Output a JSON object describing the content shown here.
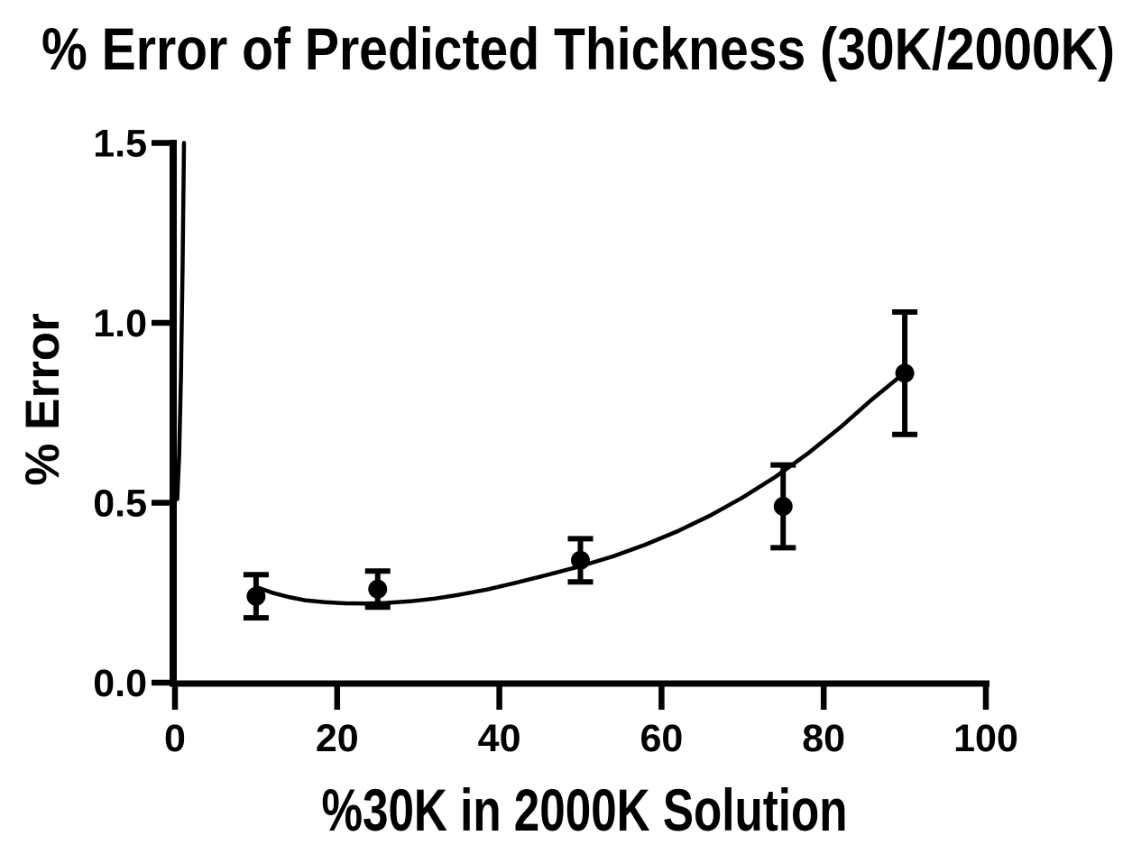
{
  "chart_data": {
    "type": "scatter",
    "title": "% Error of Predicted Thickness (30K/2000K)",
    "xlabel": "%30K in 2000K Solution",
    "ylabel": "% Error",
    "xlim": [
      0,
      100
    ],
    "ylim": [
      0,
      1.5
    ],
    "x_ticks": [
      0,
      20,
      40,
      60,
      80,
      100
    ],
    "x_tick_labels": [
      "0",
      "20",
      "40",
      "60",
      "80",
      "100"
    ],
    "y_ticks": [
      0,
      0.5,
      1.0,
      1.5
    ],
    "y_tick_labels": [
      "0.0",
      "0.5",
      "1.0",
      "1.5"
    ],
    "grid": false,
    "legend": null,
    "colors": {
      "marker": "#000000",
      "curve": "#000000",
      "axis": "#000000",
      "background": "#ffffff"
    },
    "points": [
      {
        "x": 10,
        "y": 0.24,
        "error": 0.06
      },
      {
        "x": 25,
        "y": 0.26,
        "error": 0.05
      },
      {
        "x": 50,
        "y": 0.34,
        "error": 0.06
      },
      {
        "x": 75,
        "y": 0.49,
        "error": 0.115
      },
      {
        "x": 90,
        "y": 0.86,
        "error": 0.17
      }
    ],
    "fit_curve": {
      "x": [
        10,
        12,
        14,
        16,
        18.5,
        21,
        23.5,
        26,
        29,
        32,
        35,
        38.5,
        42,
        46,
        50,
        54,
        58,
        62,
        66,
        70,
        74,
        78,
        82,
        86,
        90
      ],
      "y": [
        0.266,
        0.25,
        0.238,
        0.229,
        0.2235,
        0.2205,
        0.22,
        0.2215,
        0.226,
        0.2335,
        0.244,
        0.259,
        0.2775,
        0.3,
        0.3235,
        0.351,
        0.3835,
        0.421,
        0.4645,
        0.5145,
        0.5715,
        0.636,
        0.7085,
        0.788,
        0.862
      ]
    },
    "fit_curve_left_branch": {
      "x": [
        0.28,
        0.51,
        0.73,
        0.93,
        1.11
      ],
      "y": [
        0.51,
        0.63,
        0.85,
        1.15,
        1.5
      ]
    }
  }
}
